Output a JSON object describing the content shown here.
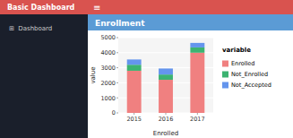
{
  "chart_data": {
    "type": "bar",
    "stacked": true,
    "title": "Enrollment",
    "annotations": [
      "Basic Dashboard",
      "≡",
      "⊞  Dashboard"
    ],
    "categories": [
      "2015",
      "2016",
      "2017"
    ],
    "series": [
      {
        "name": "Enrolled",
        "color": "#F08080",
        "values": [
          2800,
          2200,
          4000
        ]
      },
      {
        "name": "Not_Enrolled",
        "color": "#3CB371",
        "values": [
          400,
          350,
          350
        ]
      },
      {
        "name": "Not_Accepted",
        "color": "#6495ED",
        "values": [
          350,
          400,
          300
        ]
      }
    ],
    "xlabel": "Enrolled",
    "ylabel": "value",
    "ylim": [
      0,
      5000
    ],
    "yticks": [
      0,
      1000,
      2000,
      3000,
      4000,
      5000
    ],
    "grid": true,
    "legend": "right",
    "legend_title": "variable"
  }
}
